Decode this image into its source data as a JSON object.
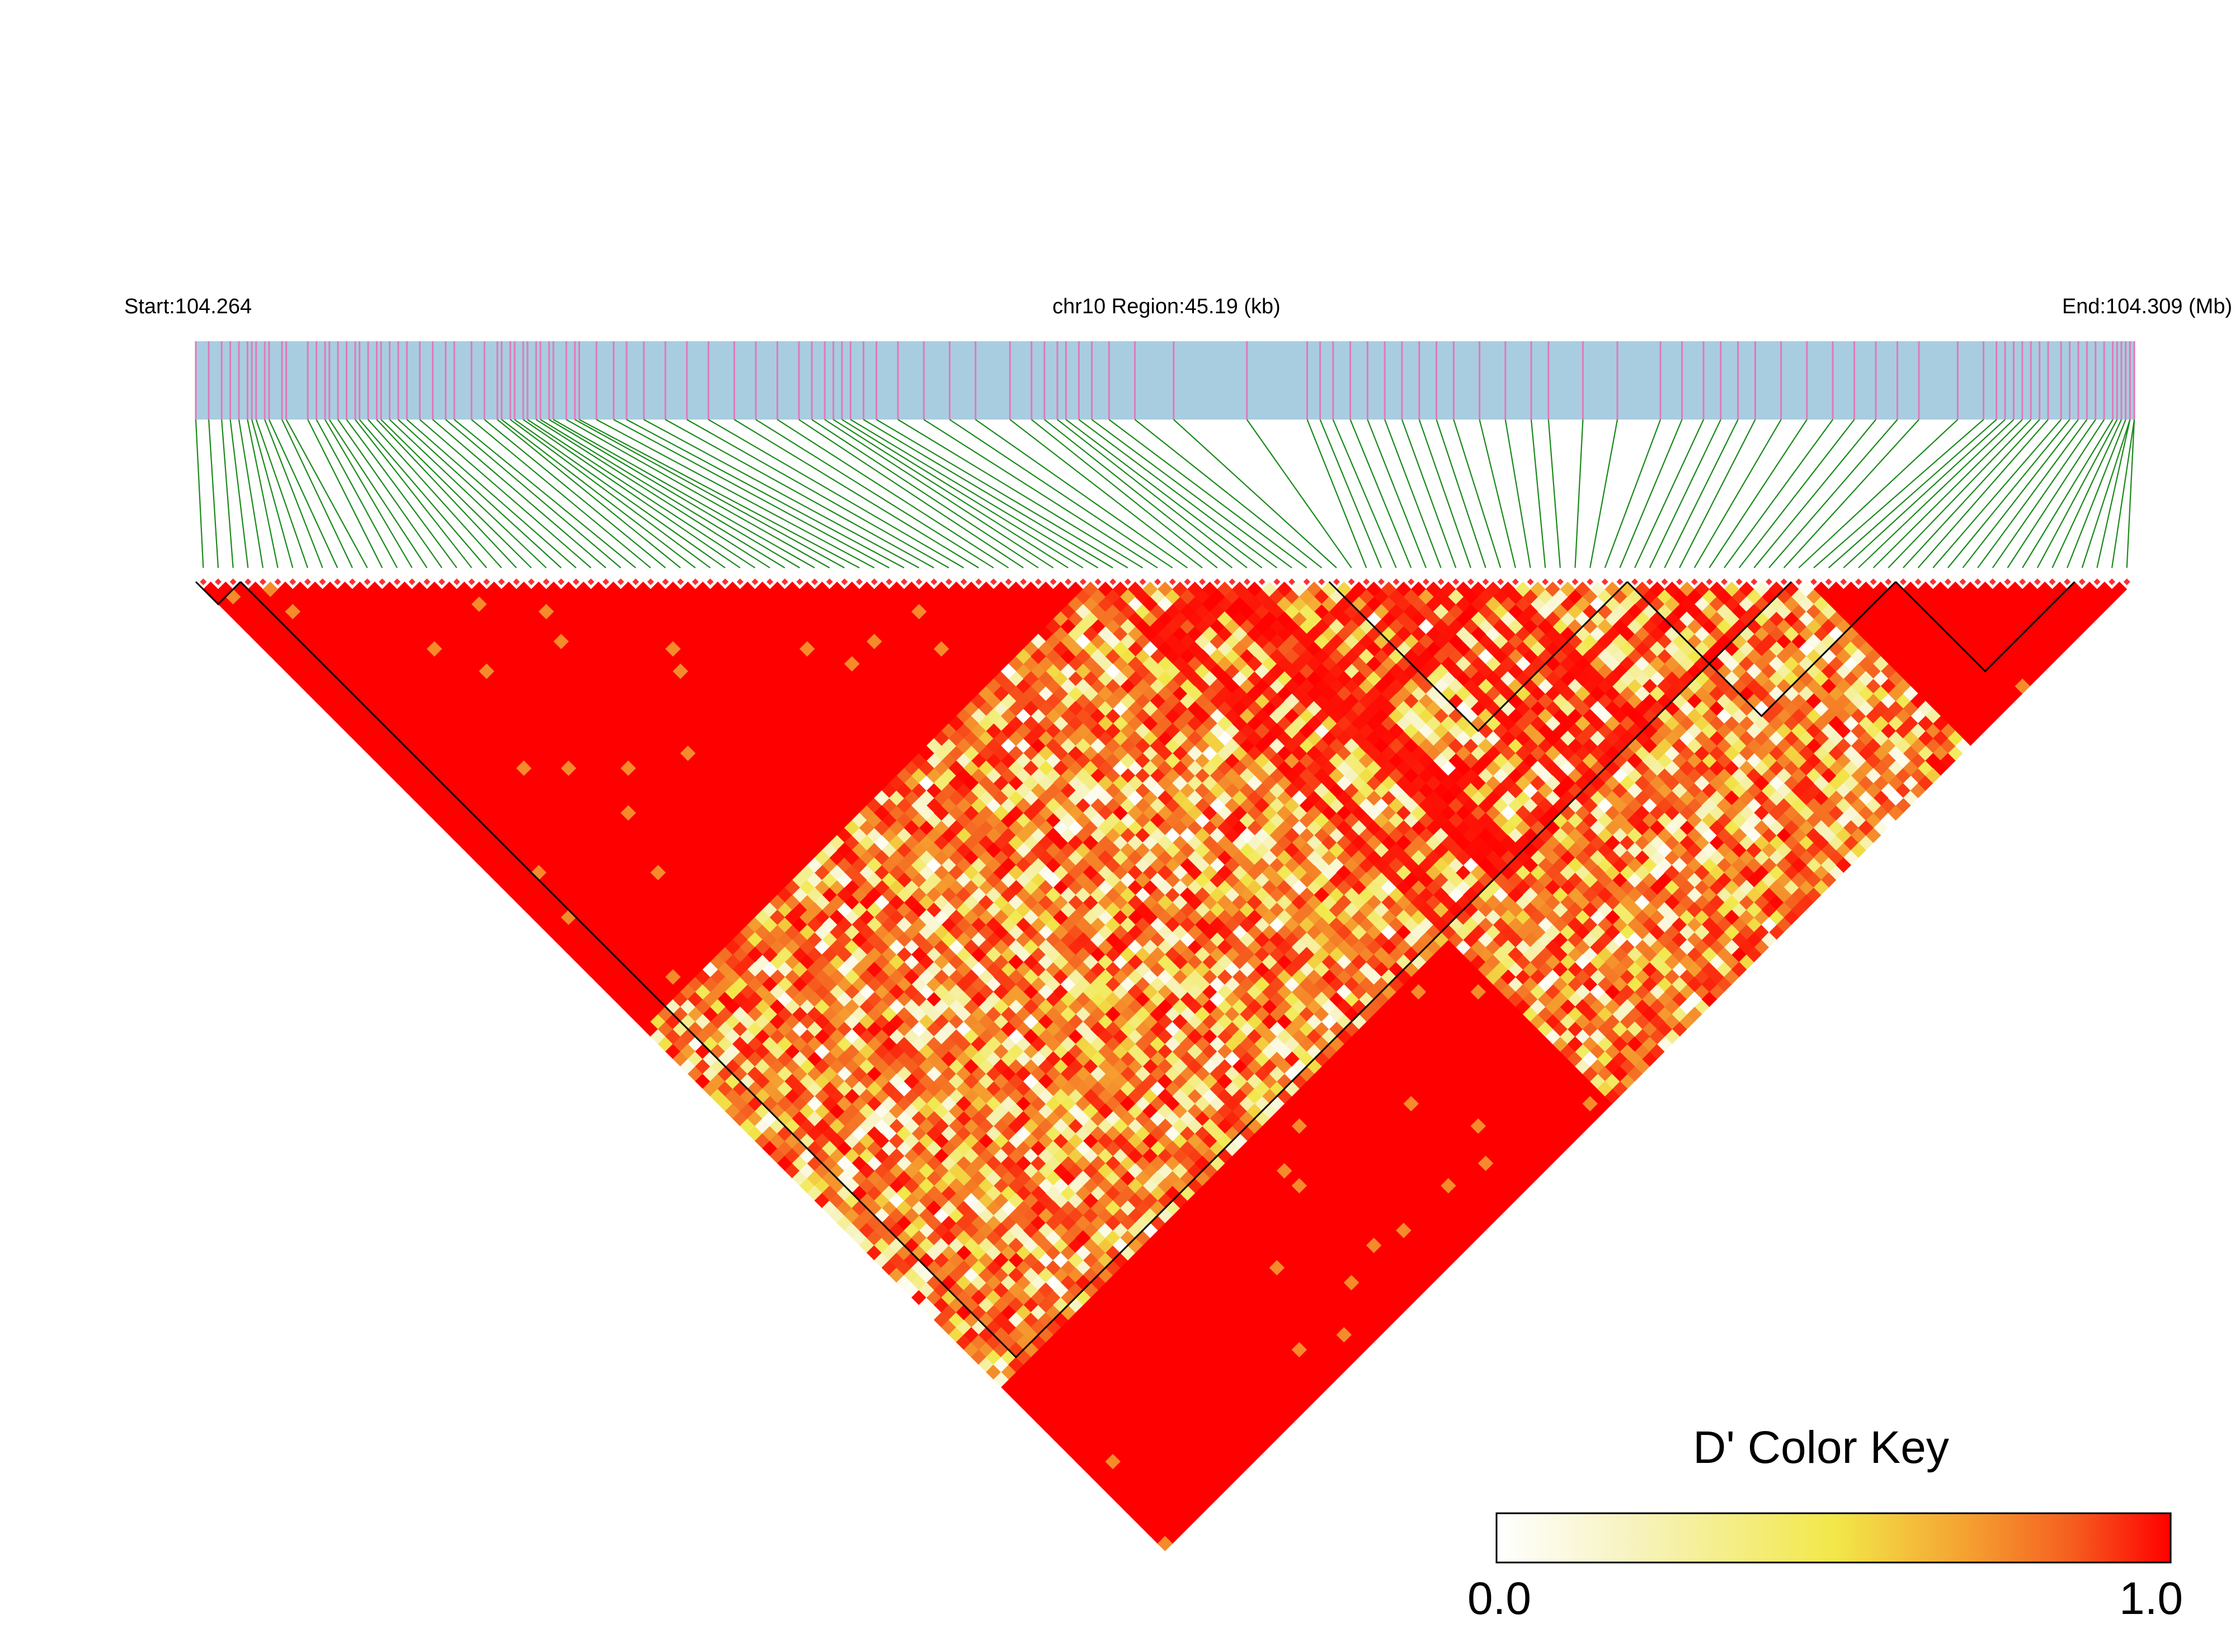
{
  "header": {
    "start_label": "Start:104.264",
    "region_label": "chr10 Region:45.19 (kb)",
    "end_label": "End:104.309 (Mb)"
  },
  "colors": {
    "gene_track": "#a8cde0",
    "snp_tick": "#e07ab8",
    "connector": "#1a8a1a",
    "high_ld": "#ff0000",
    "block_outline": "#000000"
  },
  "legend": {
    "title": "D' Color Key",
    "min_label": "0.0",
    "max_label": "1.0",
    "stops": [
      "#ffffff",
      "#f7f3c0",
      "#f2e84a",
      "#f5a030",
      "#f56020",
      "#ff0000"
    ]
  },
  "chart_data": {
    "type": "heatmap",
    "chromosome": "chr10",
    "region_start_mb": 104.264,
    "region_end_mb": 104.309,
    "region_kb": 45.19,
    "measure": "D'",
    "value_range": [
      0.0,
      1.0
    ],
    "snp_count": 130,
    "ld_blocks_snp_index": [
      [
        0,
        3
      ],
      [
        3,
        107
      ],
      [
        76,
        96
      ],
      [
        96,
        114
      ],
      [
        114,
        126
      ]
    ],
    "snp_positions_mb": [
      104.264,
      104.2643,
      104.2646,
      104.2648,
      104.265,
      104.2652,
      104.2653,
      104.2654,
      104.2656,
      104.2657,
      104.266,
      104.2661,
      104.2666,
      104.2668,
      104.267,
      104.2671,
      104.2673,
      104.2675,
      104.2677,
      104.2678,
      104.268,
      104.2682,
      104.2683,
      104.2685,
      104.2687,
      104.2689,
      104.2692,
      104.2695,
      104.2698,
      104.27,
      104.2704,
      104.2707,
      104.271,
      104.2711,
      104.2713,
      104.2714,
      104.2716,
      104.2717,
      104.2719,
      104.272,
      104.2722,
      104.2723,
      104.2726,
      104.2728,
      104.2729,
      104.2733,
      104.2737,
      104.274,
      104.2744,
      104.2749,
      104.2754,
      104.2759,
      104.2765,
      104.277,
      104.2775,
      104.278,
      104.2783,
      104.2786,
      104.2788,
      104.279,
      104.2792,
      104.2795,
      104.2798,
      104.2803,
      104.2809,
      104.2815,
      104.2821,
      104.2829,
      104.2834,
      104.2837,
      104.284,
      104.2842,
      104.2845,
      104.2848,
      104.2852,
      104.2858,
      104.2867,
      104.2884,
      104.2898,
      104.2901,
      104.2904,
      104.2908,
      104.2912,
      104.2916,
      104.292,
      104.2924,
      104.2928,
      104.2932,
      104.2938,
      104.2944,
      104.295,
      104.2954,
      104.2962,
      104.297,
      104.298,
      104.2985,
      104.299,
      104.2994,
      104.2998,
      104.3002,
      104.3008,
      104.3014,
      104.302,
      104.3025,
      104.303,
      104.3035,
      104.304,
      104.3049,
      104.3055,
      104.3058,
      104.306,
      104.3062,
      104.3064,
      104.3066,
      104.3068,
      104.307,
      104.3073,
      104.3075,
      104.3077,
      104.3079,
      104.3081,
      104.3083,
      104.3085,
      104.3086,
      104.3087,
      104.3088,
      104.3089,
      104.3089,
      104.309,
      104.309
    ],
    "d_prime_rule": "D' = 1.0 (red) inside the left blocks; lower D' values (white to orange) dominate pairs spanning SNPs 60–107; right-side blocks mostly red"
  }
}
